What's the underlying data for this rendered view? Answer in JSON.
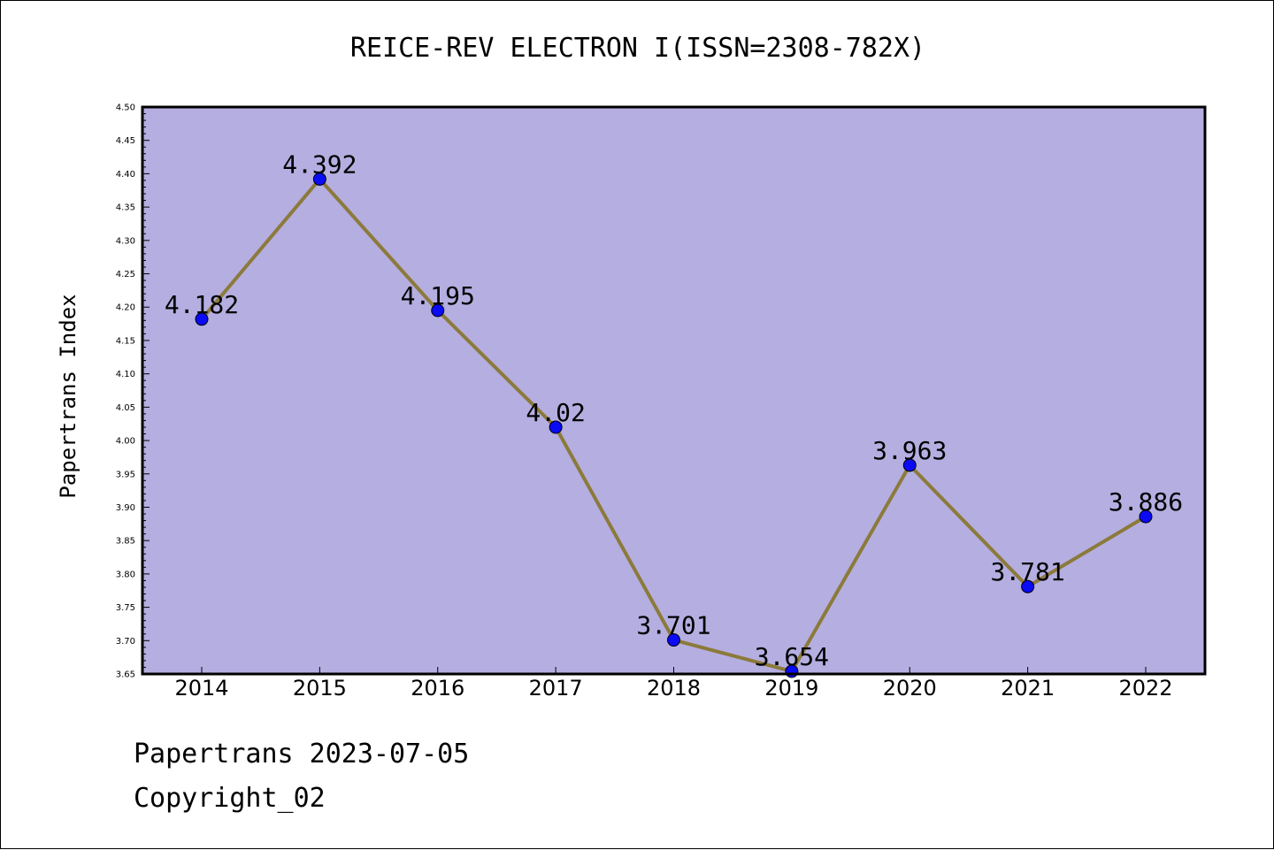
{
  "chart_data": {
    "type": "line",
    "title": "REICE-REV ELECTRON I(ISSN=2308-782X)",
    "xlabel": "",
    "ylabel": "Papertrans Index",
    "categories": [
      "2014",
      "2015",
      "2016",
      "2017",
      "2018",
      "2019",
      "2020",
      "2021",
      "2022"
    ],
    "values": [
      4.182,
      4.392,
      4.195,
      4.02,
      3.701,
      3.654,
      3.963,
      3.781,
      3.886
    ],
    "data_labels": [
      "4.182",
      "4.392",
      "4.195",
      "4.02",
      "3.701",
      "3.654",
      "3.963",
      "3.781",
      "3.886"
    ],
    "ylim": [
      3.65,
      4.5
    ],
    "yticks": [
      "3.65",
      "3.70",
      "3.75",
      "3.80",
      "3.85",
      "3.90",
      "3.95",
      "4.00",
      "4.05",
      "4.10",
      "4.15",
      "4.20",
      "4.25",
      "4.30",
      "4.35",
      "4.40",
      "4.45",
      "4.50"
    ],
    "grid": false,
    "colors": {
      "plot_background": "#b5aee1",
      "line": "#8b7a3a",
      "marker": "#0a0af5"
    }
  },
  "footer": {
    "line1": "Papertrans 2023-07-05",
    "line2": "Copyright_02"
  }
}
